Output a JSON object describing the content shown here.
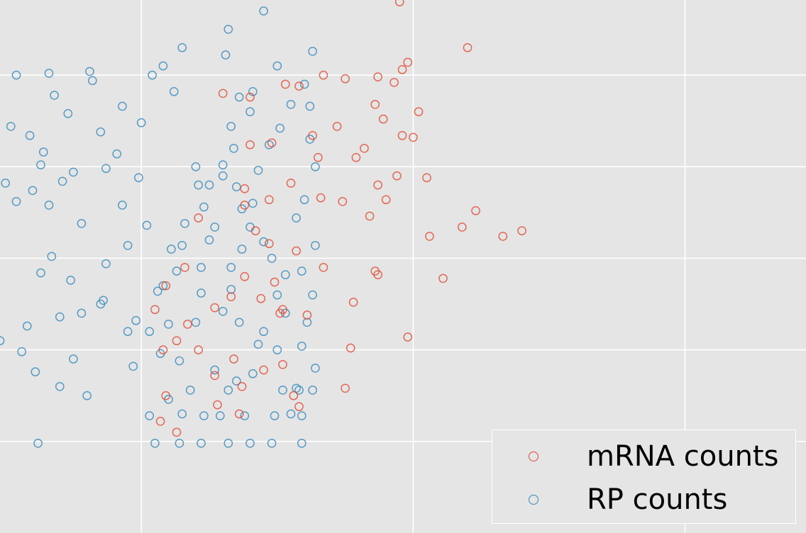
{
  "chart_data": {
    "type": "scatter",
    "marker": "open-circle",
    "grid": true,
    "legend_position": "bottom-right",
    "x_range": [
      -0.52,
      2.445
    ],
    "y_range": [
      -0.05,
      2.86
    ],
    "x_grid": [
      0,
      1,
      2
    ],
    "y_grid": [
      0.45,
      0.95,
      1.45,
      1.95,
      2.45
    ],
    "series": [
      {
        "name": "mRNA counts",
        "color": "#E24A33",
        "points": [
          [
            0.95,
            2.85
          ],
          [
            1.2,
            2.6
          ],
          [
            0.98,
            2.52
          ],
          [
            0.96,
            2.48
          ],
          [
            0.93,
            2.41
          ],
          [
            0.87,
            2.44
          ],
          [
            0.75,
            2.43
          ],
          [
            0.67,
            2.45
          ],
          [
            0.58,
            2.39
          ],
          [
            0.53,
            2.4
          ],
          [
            0.4,
            2.33
          ],
          [
            0.3,
            2.35
          ],
          [
            1.02,
            2.25
          ],
          [
            0.86,
            2.29
          ],
          [
            0.89,
            2.21
          ],
          [
            1.0,
            2.11
          ],
          [
            0.96,
            2.12
          ],
          [
            0.82,
            2.05
          ],
          [
            0.72,
            2.17
          ],
          [
            0.63,
            2.12
          ],
          [
            0.79,
            2.0
          ],
          [
            0.65,
            2.0
          ],
          [
            0.48,
            2.08
          ],
          [
            0.4,
            2.07
          ],
          [
            0.87,
            1.85
          ],
          [
            0.94,
            1.9
          ],
          [
            1.05,
            1.89
          ],
          [
            1.33,
            1.57
          ],
          [
            1.23,
            1.71
          ],
          [
            1.18,
            1.62
          ],
          [
            1.06,
            1.57
          ],
          [
            0.9,
            1.77
          ],
          [
            0.84,
            1.68
          ],
          [
            0.74,
            1.76
          ],
          [
            0.66,
            1.78
          ],
          [
            0.55,
            1.86
          ],
          [
            0.47,
            1.77
          ],
          [
            0.38,
            1.83
          ],
          [
            0.38,
            1.74
          ],
          [
            0.21,
            1.67
          ],
          [
            0.42,
            1.6
          ],
          [
            0.47,
            1.53
          ],
          [
            0.87,
            1.36
          ],
          [
            0.67,
            1.4
          ],
          [
            0.57,
            1.49
          ],
          [
            0.49,
            1.32
          ],
          [
            0.38,
            1.35
          ],
          [
            0.33,
            1.24
          ],
          [
            0.27,
            1.18
          ],
          [
            0.16,
            1.4
          ],
          [
            0.44,
            1.23
          ],
          [
            0.51,
            1.15
          ],
          [
            0.78,
            1.21
          ],
          [
            0.86,
            1.38
          ],
          [
            1.11,
            1.34
          ],
          [
            1.4,
            1.6
          ],
          [
            0.98,
            1.02
          ],
          [
            0.77,
            0.96
          ],
          [
            0.61,
            1.14
          ],
          [
            0.52,
            1.17
          ],
          [
            0.45,
            0.84
          ],
          [
            0.34,
            0.9
          ],
          [
            0.27,
            0.81
          ],
          [
            0.21,
            0.95
          ],
          [
            0.13,
            1.0
          ],
          [
            0.36,
            0.6
          ],
          [
            0.58,
            0.64
          ],
          [
            0.56,
            0.7
          ],
          [
            0.17,
            1.09
          ],
          [
            0.09,
            1.3
          ],
          [
            0.05,
            1.17
          ],
          [
            0.08,
            0.95
          ],
          [
            0.09,
            0.7
          ],
          [
            0.07,
            0.56
          ],
          [
            0.13,
            0.5
          ],
          [
            0.28,
            0.65
          ],
          [
            0.37,
            0.75
          ],
          [
            0.52,
            0.87
          ],
          [
            0.75,
            0.74
          ]
        ]
      },
      {
        "name": "RP counts",
        "color": "#348ABD",
        "points": [
          [
            -0.46,
            2.45
          ],
          [
            -0.34,
            2.46
          ],
          [
            -0.19,
            2.47
          ],
          [
            -0.48,
            2.17
          ],
          [
            -0.27,
            2.24
          ],
          [
            -0.32,
            2.34
          ],
          [
            -0.41,
            2.12
          ],
          [
            -0.36,
            2.03
          ],
          [
            -0.29,
            1.87
          ],
          [
            -0.37,
            1.96
          ],
          [
            -0.5,
            1.86
          ],
          [
            -0.46,
            1.76
          ],
          [
            -0.25,
            1.92
          ],
          [
            -0.34,
            1.74
          ],
          [
            -0.4,
            1.82
          ],
          [
            -0.13,
            1.94
          ],
          [
            -0.15,
            2.14
          ],
          [
            -0.09,
            2.02
          ],
          [
            -0.01,
            1.89
          ],
          [
            0.02,
            1.63
          ],
          [
            -0.07,
            1.74
          ],
          [
            -0.22,
            1.64
          ],
          [
            -0.33,
            1.46
          ],
          [
            -0.26,
            1.33
          ],
          [
            -0.37,
            1.37
          ],
          [
            -0.13,
            1.42
          ],
          [
            -0.05,
            1.52
          ],
          [
            -0.14,
            1.22
          ],
          [
            -0.02,
            1.11
          ],
          [
            0.1,
            1.09
          ],
          [
            0.06,
            1.27
          ],
          [
            0.11,
            1.5
          ],
          [
            0.16,
            1.64
          ],
          [
            0.25,
            1.85
          ],
          [
            0.3,
            1.9
          ],
          [
            0.34,
            2.05
          ],
          [
            0.47,
            2.07
          ],
          [
            0.12,
            2.36
          ],
          [
            0.08,
            2.5
          ],
          [
            0.15,
            2.6
          ],
          [
            0.04,
            2.45
          ],
          [
            -0.18,
            2.42
          ],
          [
            -0.07,
            2.28
          ],
          [
            0.0,
            2.19
          ],
          [
            0.32,
            2.7
          ],
          [
            0.31,
            2.56
          ],
          [
            0.45,
            2.8
          ],
          [
            0.41,
            2.36
          ],
          [
            0.5,
            2.5
          ],
          [
            0.63,
            2.58
          ],
          [
            0.6,
            2.4
          ],
          [
            0.62,
            2.1
          ],
          [
            0.64,
            1.95
          ],
          [
            0.6,
            1.77
          ],
          [
            0.57,
            1.67
          ],
          [
            0.64,
            1.52
          ],
          [
            0.59,
            1.38
          ],
          [
            0.63,
            1.25
          ],
          [
            0.61,
            1.1
          ],
          [
            0.59,
            0.97
          ],
          [
            0.64,
            0.85
          ],
          [
            0.57,
            0.74
          ],
          [
            0.55,
            0.6
          ],
          [
            0.59,
            0.44
          ],
          [
            0.48,
            0.44
          ],
          [
            0.4,
            0.44
          ],
          [
            0.32,
            0.44
          ],
          [
            0.22,
            0.44
          ],
          [
            0.14,
            0.44
          ],
          [
            0.05,
            0.44
          ],
          [
            -0.38,
            0.44
          ],
          [
            0.03,
            0.59
          ],
          [
            0.15,
            0.6
          ],
          [
            0.23,
            0.59
          ],
          [
            0.29,
            0.59
          ],
          [
            0.38,
            0.59
          ],
          [
            0.49,
            0.59
          ],
          [
            0.59,
            0.59
          ],
          [
            0.1,
            0.68
          ],
          [
            0.18,
            0.73
          ],
          [
            0.32,
            0.73
          ],
          [
            0.52,
            0.73
          ],
          [
            0.58,
            0.73
          ],
          [
            0.63,
            0.73
          ],
          [
            0.35,
            0.78
          ],
          [
            0.41,
            0.82
          ],
          [
            0.27,
            0.84
          ],
          [
            0.14,
            0.89
          ],
          [
            0.07,
            0.93
          ],
          [
            -0.03,
            0.86
          ],
          [
            -0.25,
            0.9
          ],
          [
            -0.3,
            0.75
          ],
          [
            -0.2,
            0.7
          ],
          [
            -0.39,
            0.83
          ],
          [
            -0.52,
            1.0
          ],
          [
            -0.44,
            0.94
          ],
          [
            -0.42,
            1.08
          ],
          [
            -0.3,
            1.13
          ],
          [
            -0.22,
            1.15
          ],
          [
            -0.15,
            1.2
          ],
          [
            -0.05,
            1.05
          ],
          [
            0.03,
            1.05
          ],
          [
            0.2,
            1.1
          ],
          [
            0.3,
            1.16
          ],
          [
            0.22,
            1.26
          ],
          [
            0.08,
            1.3
          ],
          [
            0.13,
            1.38
          ],
          [
            0.22,
            1.4
          ],
          [
            0.15,
            1.52
          ],
          [
            0.25,
            1.55
          ],
          [
            0.27,
            1.62
          ],
          [
            0.23,
            1.73
          ],
          [
            0.21,
            1.85
          ],
          [
            0.2,
            1.95
          ],
          [
            0.3,
            1.96
          ],
          [
            0.35,
            1.84
          ],
          [
            0.37,
            1.72
          ],
          [
            0.4,
            1.62
          ],
          [
            0.45,
            1.54
          ],
          [
            0.48,
            1.45
          ],
          [
            0.53,
            1.36
          ],
          [
            0.5,
            1.25
          ],
          [
            0.53,
            1.15
          ],
          [
            0.45,
            1.05
          ],
          [
            0.43,
            0.98
          ],
          [
            0.5,
            0.95
          ],
          [
            0.36,
            1.1
          ],
          [
            0.33,
            1.28
          ],
          [
            0.33,
            1.4
          ],
          [
            0.37,
            1.5
          ],
          [
            0.41,
            1.75
          ],
          [
            0.43,
            1.93
          ],
          [
            0.51,
            2.16
          ],
          [
            0.55,
            2.29
          ],
          [
            0.62,
            2.28
          ],
          [
            0.4,
            2.25
          ],
          [
            0.33,
            2.17
          ],
          [
            0.36,
            2.33
          ]
        ]
      }
    ]
  }
}
